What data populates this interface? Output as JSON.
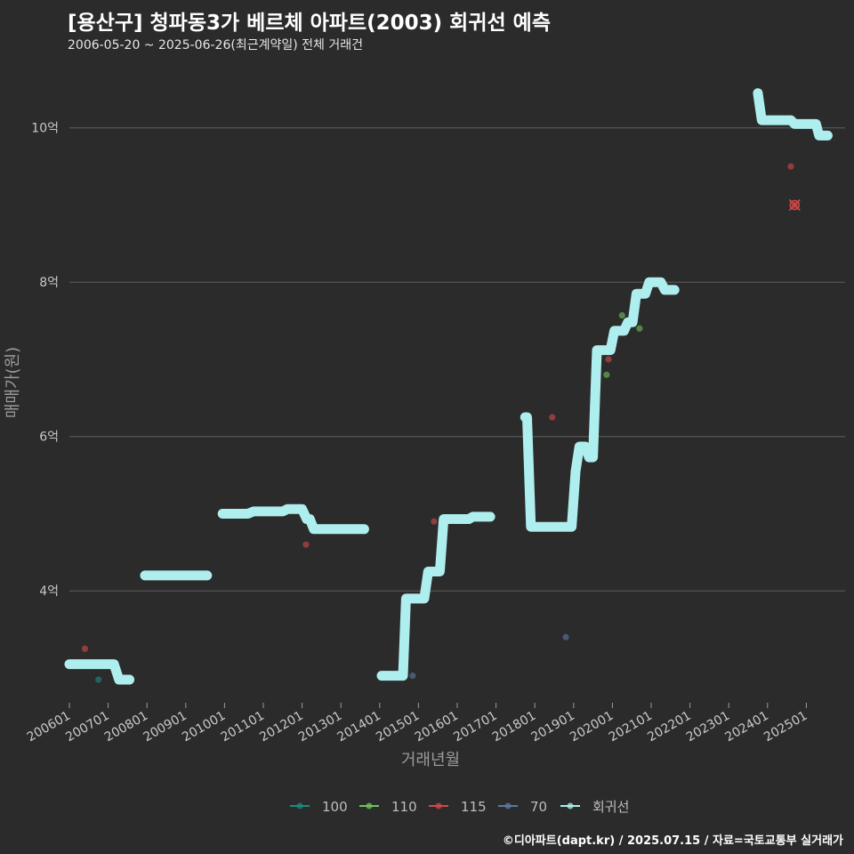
{
  "title": "[용산구] 청파동3가 베르체 아파트(2003) 회귀선 예측",
  "subtitle": "2006-05-20 ~ 2025-06-26(최근계약일) 전체 거래건",
  "caption": "©디아파트(dapt.kr) / 2025.07.15 / 자료=국토교통부 실거래가",
  "colors": {
    "background": "#2b2b2b",
    "grid": "#5e5e5e",
    "regression": "#aeeeee",
    "s100": "#1f8a80",
    "s110": "#6fc35a",
    "s115": "#d24a4a",
    "s70": "#5b7aa3"
  },
  "chart_data": {
    "type": "line",
    "title": "[용산구] 청파동3가 베르체 아파트(2003) 회귀선 예측",
    "xlabel": "거래년월",
    "ylabel": "매매가(원)",
    "xlim": [
      2006.0,
      2026.0
    ],
    "ylim": [
      2.55,
      10.85
    ],
    "y_ticks": [
      4,
      6,
      8,
      10
    ],
    "y_tick_labels": [
      "4억",
      "6억",
      "8억",
      "10억"
    ],
    "x_ticks": [
      2006,
      2007,
      2008,
      2009,
      2010,
      2011,
      2012,
      2013,
      2014,
      2015,
      2016,
      2017,
      2018,
      2019,
      2020,
      2021,
      2022,
      2023,
      2024,
      2025
    ],
    "x_tick_labels": [
      "200601",
      "200701",
      "200801",
      "200901",
      "201001",
      "201101",
      "201201",
      "201301",
      "201401",
      "201501",
      "201601",
      "201701",
      "201801",
      "201901",
      "202001",
      "202101",
      "202201",
      "202301",
      "202401",
      "202501"
    ],
    "legend": [
      "100",
      "110",
      "115",
      "70",
      "회귀선"
    ],
    "legend_position": "bottom",
    "regression_segments": [
      [
        [
          2006.0,
          3.05
        ],
        [
          2007.15,
          3.05
        ],
        [
          2007.28,
          2.85
        ],
        [
          2007.55,
          2.85
        ]
      ],
      [
        [
          2007.95,
          4.2
        ],
        [
          2009.55,
          4.2
        ]
      ],
      [
        [
          2009.95,
          5.0
        ],
        [
          2010.6,
          5.0
        ],
        [
          2010.75,
          5.03
        ],
        [
          2011.5,
          5.03
        ],
        [
          2011.62,
          5.06
        ],
        [
          2012.0,
          5.06
        ],
        [
          2012.12,
          4.93
        ],
        [
          2012.2,
          4.93
        ],
        [
          2012.3,
          4.8
        ],
        [
          2013.6,
          4.8
        ]
      ],
      [
        [
          2014.05,
          2.9
        ],
        [
          2014.6,
          2.9
        ],
        [
          2014.68,
          3.9
        ],
        [
          2015.15,
          3.9
        ],
        [
          2015.25,
          4.25
        ],
        [
          2015.55,
          4.25
        ],
        [
          2015.65,
          4.93
        ],
        [
          2016.3,
          4.93
        ],
        [
          2016.4,
          4.96
        ],
        [
          2016.85,
          4.96
        ]
      ],
      [
        [
          2017.75,
          6.25
        ],
        [
          2017.8,
          6.25
        ],
        [
          2017.9,
          4.83
        ],
        [
          2018.95,
          4.83
        ],
        [
          2019.05,
          5.55
        ],
        [
          2019.15,
          5.87
        ],
        [
          2019.3,
          5.87
        ],
        [
          2019.4,
          5.73
        ],
        [
          2019.5,
          5.73
        ],
        [
          2019.6,
          7.12
        ],
        [
          2019.95,
          7.12
        ],
        [
          2020.05,
          7.37
        ],
        [
          2020.3,
          7.37
        ],
        [
          2020.4,
          7.48
        ],
        [
          2020.52,
          7.48
        ],
        [
          2020.62,
          7.85
        ],
        [
          2020.85,
          7.85
        ],
        [
          2020.95,
          8.0
        ],
        [
          2021.25,
          8.0
        ],
        [
          2021.35,
          7.9
        ],
        [
          2021.6,
          7.9
        ]
      ],
      [
        [
          2023.75,
          10.45
        ],
        [
          2023.85,
          10.1
        ],
        [
          2024.6,
          10.1
        ],
        [
          2024.7,
          10.05
        ],
        [
          2025.25,
          10.05
        ],
        [
          2025.33,
          9.9
        ],
        [
          2025.55,
          9.9
        ]
      ]
    ],
    "series": [
      {
        "name": "100",
        "points": [
          [
            2006.75,
            2.85
          ]
        ]
      },
      {
        "name": "110",
        "points": [
          [
            2019.85,
            6.8
          ],
          [
            2020.25,
            7.57
          ],
          [
            2020.7,
            7.4
          ]
        ]
      },
      {
        "name": "115",
        "points": [
          [
            2006.4,
            3.25
          ],
          [
            2012.1,
            4.6
          ],
          [
            2018.45,
            6.25
          ],
          [
            2019.9,
            7.0
          ],
          [
            2015.4,
            4.9
          ],
          [
            2024.6,
            9.5
          ],
          [
            2024.7,
            9.0
          ]
        ]
      },
      {
        "name": "70",
        "points": [
          [
            2014.85,
            2.9
          ],
          [
            2018.8,
            3.4
          ]
        ]
      }
    ],
    "highlight_point": {
      "name": "115",
      "x": 2024.7,
      "y": 9.0
    }
  }
}
